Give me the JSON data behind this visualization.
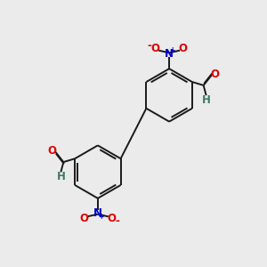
{
  "background_color": "#ebebeb",
  "bond_color": "#1a1a1a",
  "atom_colors": {
    "O": "#e00000",
    "N": "#0000cc",
    "H": "#3a7a6a"
  },
  "figsize": [
    3.0,
    3.0
  ],
  "dpi": 100,
  "bond_lw": 1.4,
  "font_size": 8.5
}
